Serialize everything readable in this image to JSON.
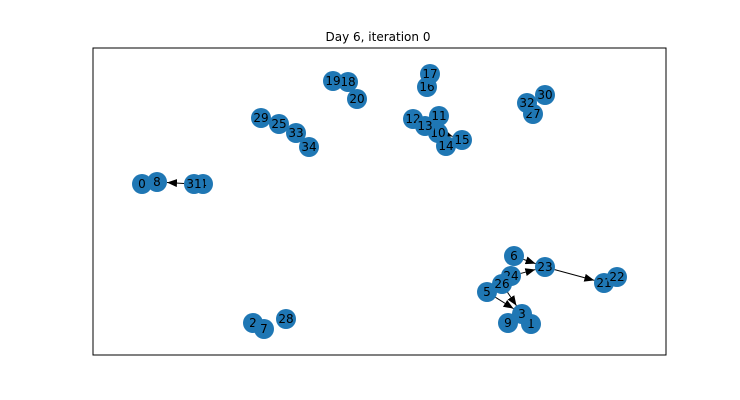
{
  "figure": {
    "title": "Day 6, iteration 0"
  },
  "style": {
    "node_color": "#1f77b4",
    "edge_color": "#000000",
    "frame_color": "#000000",
    "background": "#ffffff"
  },
  "graph": {
    "directed": true,
    "nodes": [
      {
        "id": "0"
      },
      {
        "id": "1"
      },
      {
        "id": "2"
      },
      {
        "id": "3"
      },
      {
        "id": "4"
      },
      {
        "id": "5"
      },
      {
        "id": "6"
      },
      {
        "id": "7"
      },
      {
        "id": "8"
      },
      {
        "id": "9"
      },
      {
        "id": "10"
      },
      {
        "id": "11"
      },
      {
        "id": "12"
      },
      {
        "id": "13"
      },
      {
        "id": "14"
      },
      {
        "id": "15"
      },
      {
        "id": "16"
      },
      {
        "id": "17"
      },
      {
        "id": "18"
      },
      {
        "id": "19"
      },
      {
        "id": "20"
      },
      {
        "id": "21"
      },
      {
        "id": "22"
      },
      {
        "id": "23"
      },
      {
        "id": "24"
      },
      {
        "id": "25"
      },
      {
        "id": "26"
      },
      {
        "id": "27"
      },
      {
        "id": "28"
      },
      {
        "id": "29"
      },
      {
        "id": "30"
      },
      {
        "id": "31"
      },
      {
        "id": "32"
      },
      {
        "id": "33"
      },
      {
        "id": "34"
      }
    ],
    "edges": [
      {
        "source": "31",
        "target": "8"
      },
      {
        "source": "6",
        "target": "23"
      },
      {
        "source": "24",
        "target": "23"
      },
      {
        "source": "23",
        "target": "21"
      },
      {
        "source": "5",
        "target": "3"
      },
      {
        "source": "26",
        "target": "3"
      },
      {
        "source": "13",
        "target": "15"
      }
    ]
  }
}
